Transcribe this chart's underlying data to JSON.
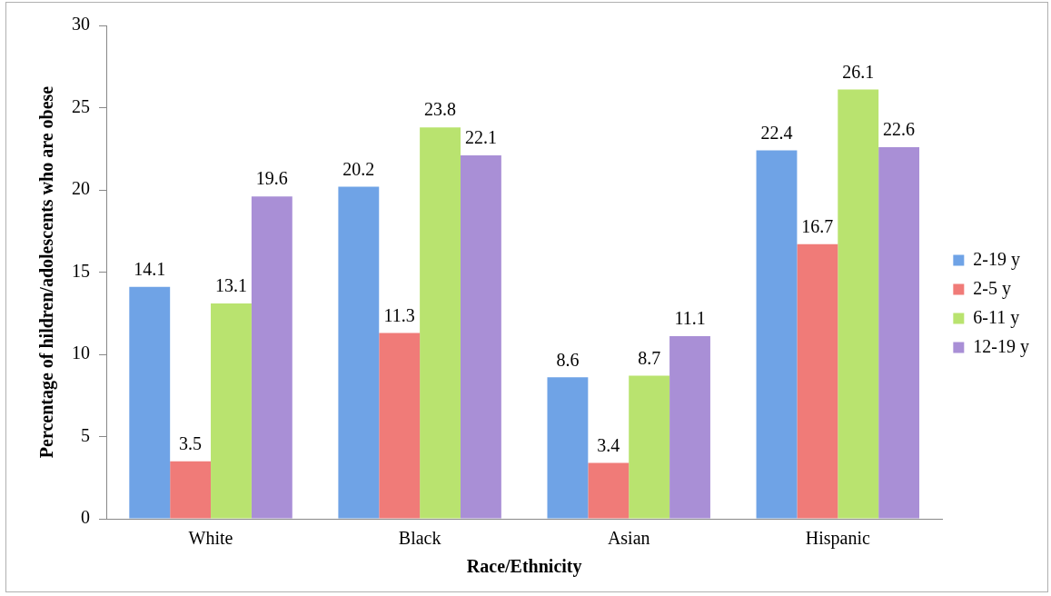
{
  "chart_data": {
    "type": "bar",
    "xlabel": "Race/Ethnicity",
    "ylabel": "Percentage of hildren/adolescents who are obese",
    "categories": [
      "White",
      "Black",
      "Asian",
      "Hispanic"
    ],
    "series": [
      {
        "name": "2-19 y",
        "color": "#6fa3e6",
        "values": [
          14.1,
          20.2,
          8.6,
          22.4
        ]
      },
      {
        "name": "2-5 y",
        "color": "#f07b78",
        "values": [
          3.5,
          11.3,
          3.4,
          16.7
        ]
      },
      {
        "name": "6-11 y",
        "color": "#b9e36f",
        "values": [
          13.1,
          23.8,
          8.7,
          26.1
        ]
      },
      {
        "name": "12-19 y",
        "color": "#a98fd6",
        "values": [
          19.6,
          22.1,
          11.1,
          22.6
        ]
      }
    ],
    "ylim": [
      0,
      30
    ],
    "yticks": [
      0,
      5,
      10,
      15,
      20,
      25,
      30
    ],
    "grid": false,
    "legend": "right",
    "data_labels": true
  }
}
